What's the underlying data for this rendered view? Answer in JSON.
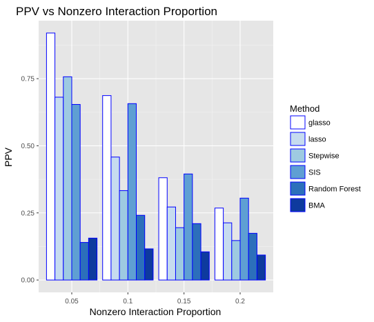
{
  "chart_data": {
    "type": "bar",
    "title": "PPV vs Nonzero Interaction Proportion",
    "xlabel": "Nonzero Interaction Proportion",
    "ylabel": "PPV",
    "categories": [
      "0.05",
      "0.1",
      "0.15",
      "0.2"
    ],
    "x_values": [
      0.05,
      0.1,
      0.15,
      0.2
    ],
    "xlim": [
      0.0205,
      0.2295
    ],
    "ylim": [
      -0.046,
      0.966
    ],
    "y_ticks": [
      0.0,
      0.25,
      0.5,
      0.75
    ],
    "y_tick_labels": [
      "0.00",
      "0.25",
      "0.50",
      "0.75"
    ],
    "grid": true,
    "legend": {
      "title": "Method",
      "position": "right"
    },
    "series": [
      {
        "name": "glasso",
        "color": "#ffffff",
        "values": [
          0.92,
          0.687,
          0.381,
          0.268
        ]
      },
      {
        "name": "lasso",
        "color": "#c6dbef",
        "values": [
          0.681,
          0.458,
          0.272,
          0.213
        ]
      },
      {
        "name": "Stepwise",
        "color": "#9ecae1",
        "values": [
          0.757,
          0.333,
          0.195,
          0.147
        ]
      },
      {
        "name": "SIS",
        "color": "#5f9fd3",
        "values": [
          0.654,
          0.657,
          0.395,
          0.305
        ]
      },
      {
        "name": "Random Forest",
        "color": "#2c6fbb",
        "values": [
          0.14,
          0.241,
          0.21,
          0.174
        ]
      },
      {
        "name": "BMA",
        "color": "#0e3a9e",
        "values": [
          0.156,
          0.116,
          0.105,
          0.093
        ]
      }
    ],
    "bar_outline_color": "#0000ff",
    "panel_background": "#e6e6e6"
  }
}
